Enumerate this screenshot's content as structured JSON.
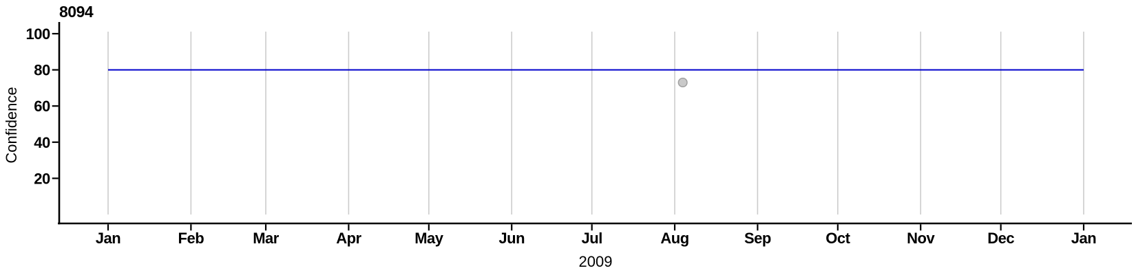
{
  "chart_data": {
    "type": "line",
    "title": "8094",
    "xlabel": "2009",
    "ylabel": "Confidence",
    "x_axis": {
      "tick_labels": [
        "Jan",
        "Feb",
        "Mar",
        "Apr",
        "May",
        "Jun",
        "Jul",
        "Aug",
        "Sep",
        "Oct",
        "Nov",
        "Dec",
        "Jan"
      ],
      "tick_day_offsets": [
        0,
        31,
        59,
        90,
        120,
        151,
        181,
        212,
        243,
        273,
        304,
        334,
        365
      ],
      "days_total": 365,
      "grid": "vertical gridline at each month tick, spanning y 0 to 100"
    },
    "y_axis": {
      "tick_labels": [
        "20",
        "40",
        "60",
        "80",
        "100"
      ],
      "tick_values": [
        20,
        40,
        60,
        80,
        100
      ],
      "range": [
        0,
        100
      ]
    },
    "legend": "none",
    "series": [
      {
        "name": "confidence-threshold-line",
        "type": "line",
        "color": "#0000CC",
        "points": [
          {
            "day": 0,
            "value": 80
          },
          {
            "day": 365,
            "value": 80
          }
        ]
      },
      {
        "name": "observation-point",
        "type": "scatter",
        "fill": "#C9C9C9",
        "stroke": "#A0A0A0",
        "points": [
          {
            "day": 215,
            "value": 73
          }
        ]
      }
    ]
  },
  "colors": {
    "background": "#FFFFFF",
    "axis": "#000000",
    "gridline": "#CCCCCC",
    "text": "#000000"
  }
}
